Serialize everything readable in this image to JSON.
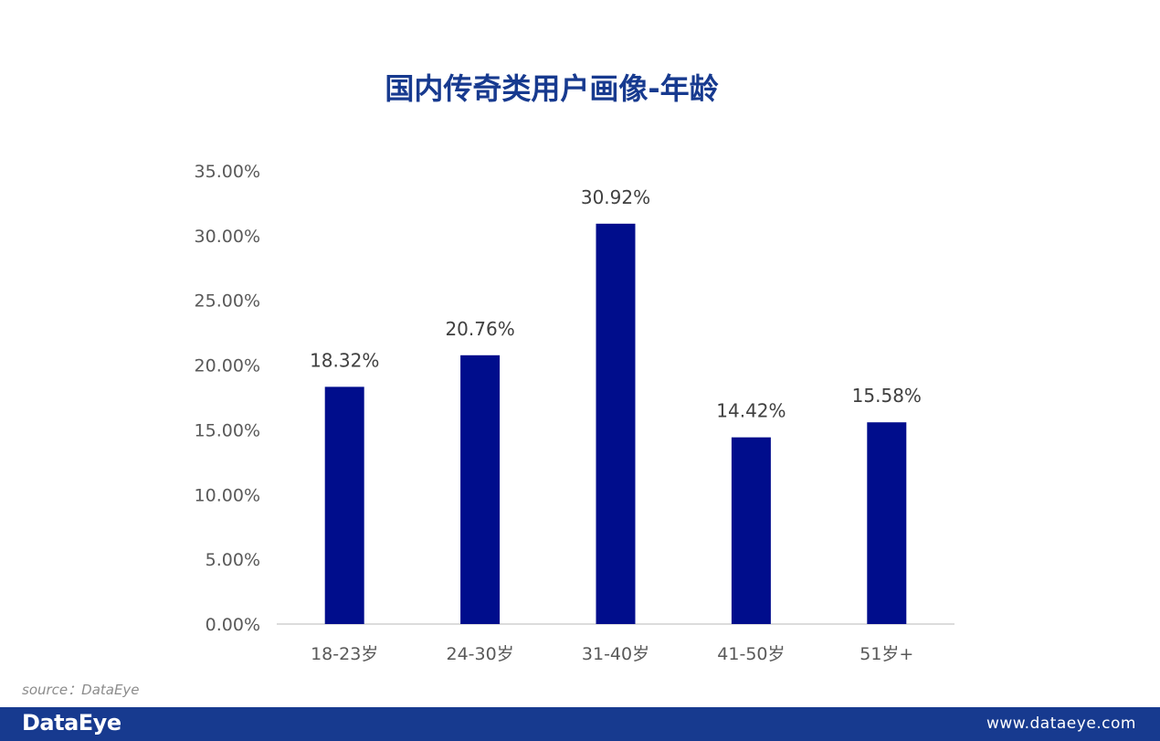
{
  "page": {
    "title": "国内传奇类用户画像-年龄",
    "source": "source：DataEye",
    "footer_brand": "DataEye",
    "footer_url": "www.dataeye.com"
  },
  "colors": {
    "bar": "#000d8c",
    "title": "#173a8f",
    "footer_bg": "#173a8f",
    "axis_text": "#595959",
    "label_text": "#404040",
    "axis_line": "#d0d0d0"
  },
  "chart_data": {
    "type": "bar",
    "title": "国内传奇类用户画像-年龄",
    "xlabel": "",
    "ylabel": "",
    "categories": [
      "18-23岁",
      "24-30岁",
      "31-40岁",
      "41-50岁",
      "51岁+"
    ],
    "values": [
      18.32,
      20.76,
      30.92,
      14.42,
      15.58
    ],
    "data_labels": [
      "18.32%",
      "20.76%",
      "30.92%",
      "14.42%",
      "15.58%"
    ],
    "ylim": [
      0,
      35
    ],
    "yticks": [
      0,
      5,
      10,
      15,
      20,
      25,
      30,
      35
    ],
    "ytick_labels": [
      "0.00%",
      "5.00%",
      "10.00%",
      "15.00%",
      "20.00%",
      "25.00%",
      "30.00%",
      "35.00%"
    ],
    "grid": false,
    "legend": "none"
  }
}
